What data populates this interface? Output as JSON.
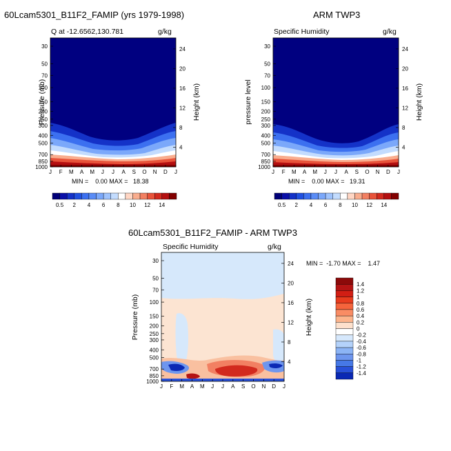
{
  "panels": {
    "model": {
      "title": "60Lcam5301_B11F2_FAMIP (yrs 1979-1998)",
      "subtitle_left": "Q at -12.6562,130.781",
      "units": "g/kg",
      "ylabel_left": "Pressure (mb)",
      "ylabel_right": "Height (km)",
      "min_max": "MIN =    0.00 MAX =   18.38"
    },
    "obs": {
      "title": "ARM TWP3",
      "subtitle_left": "Specific Humidity",
      "units": "g/kg",
      "ylabel_left": "pressure level",
      "ylabel_right": "Height (km)",
      "min_max": "MIN =    0.00 MAX =   19.31"
    },
    "diff": {
      "title": "60Lcam5301_B11F2_FAMIP - ARM TWP3",
      "subtitle_left": "Specific Humidity",
      "units": "g/kg",
      "ylabel_left": "Pressure (mb)",
      "ylabel_right": "Height (km)",
      "min_max": "MIN =  -1.70 MAX =    1.47"
    }
  },
  "chart_data": [
    {
      "type": "heatmap",
      "title": "60Lcam5301_B11F2_FAMIP (yrs 1979-1998)",
      "x_tick_labels": [
        "J",
        "F",
        "M",
        "A",
        "M",
        "J",
        "J",
        "A",
        "S",
        "O",
        "N",
        "D",
        "J"
      ],
      "pressure_ticks": [
        30,
        50,
        70,
        100,
        150,
        200,
        250,
        300,
        400,
        500,
        700,
        850,
        1000
      ],
      "height_ticks": [
        4,
        8,
        12,
        16,
        20,
        24
      ],
      "ylabel": "Pressure (mb)",
      "ylabel_right": "Height (km)",
      "colorbar_labels": [
        "0.5",
        "2",
        "4",
        "6",
        "8",
        "10",
        "12",
        "14"
      ],
      "colorbar_colors": [
        "#000078",
        "#0a0fa8",
        "#1432c8",
        "#2050e0",
        "#3c70f0",
        "#5a8cf6",
        "#7ba8fa",
        "#9fc3fd",
        "#c3dcfe",
        "#ffffff",
        "#ffd6c4",
        "#f9ad8e",
        "#f28062",
        "#e8533a",
        "#d22a1e",
        "#b40f10",
        "#820000"
      ],
      "min": 0.0,
      "max": 18.38,
      "units": "g/kg"
    },
    {
      "type": "heatmap",
      "title": "ARM TWP3",
      "x_tick_labels": [
        "J",
        "F",
        "M",
        "A",
        "M",
        "J",
        "J",
        "A",
        "S",
        "O",
        "N",
        "D",
        "J"
      ],
      "pressure_ticks": [
        30,
        50,
        70,
        100,
        150,
        200,
        250,
        300,
        400,
        500,
        700,
        850,
        1000
      ],
      "height_ticks": [
        4,
        8,
        12,
        16,
        20,
        24
      ],
      "ylabel": "pressure level",
      "ylabel_right": "Height (km)",
      "colorbar_labels": [
        "0.5",
        "2",
        "4",
        "6",
        "8",
        "10",
        "12",
        "14"
      ],
      "colorbar_colors": [
        "#000078",
        "#0a0fa8",
        "#1432c8",
        "#2050e0",
        "#3c70f0",
        "#5a8cf6",
        "#7ba8fa",
        "#9fc3fd",
        "#c3dcfe",
        "#ffffff",
        "#ffd6c4",
        "#f9ad8e",
        "#f28062",
        "#e8533a",
        "#d22a1e",
        "#b40f10",
        "#820000"
      ],
      "min": 0.0,
      "max": 19.31,
      "units": "g/kg"
    },
    {
      "type": "heatmap",
      "title": "60Lcam5301_B11F2_FAMIP - ARM TWP3",
      "x_tick_labels": [
        "J",
        "F",
        "M",
        "A",
        "M",
        "J",
        "J",
        "A",
        "S",
        "O",
        "N",
        "D",
        "J"
      ],
      "pressure_ticks": [
        30,
        50,
        70,
        100,
        150,
        200,
        250,
        300,
        400,
        500,
        700,
        850,
        1000
      ],
      "height_ticks": [
        4,
        8,
        12,
        16,
        20,
        24
      ],
      "ylabel": "Pressure (mb)",
      "ylabel_right": "Height (km)",
      "colorbar_labels": [
        "1.4",
        "1.2",
        "1",
        "0.8",
        "0.6",
        "0.4",
        "0.2",
        "0",
        "-0.2",
        "-0.4",
        "-0.6",
        "-0.8",
        "-1",
        "-1.2",
        "-1.4"
      ],
      "colorbar_colors": [
        "#8c0a0a",
        "#b41414",
        "#d21e14",
        "#e83c1e",
        "#f5643c",
        "#f98c64",
        "#fcb48c",
        "#fde0cc",
        "#ffffff",
        "#d6e8fc",
        "#b4d2fa",
        "#8cb4f5",
        "#6e96ee",
        "#4678e6",
        "#2850d8",
        "#0a28b4"
      ],
      "min": -1.7,
      "max": 1.47,
      "units": "g/kg"
    }
  ],
  "colors": {
    "dry": "#000080",
    "upper_diff_tint": "#d6e8fb",
    "mid_diff_tint": "#fce4d2"
  }
}
